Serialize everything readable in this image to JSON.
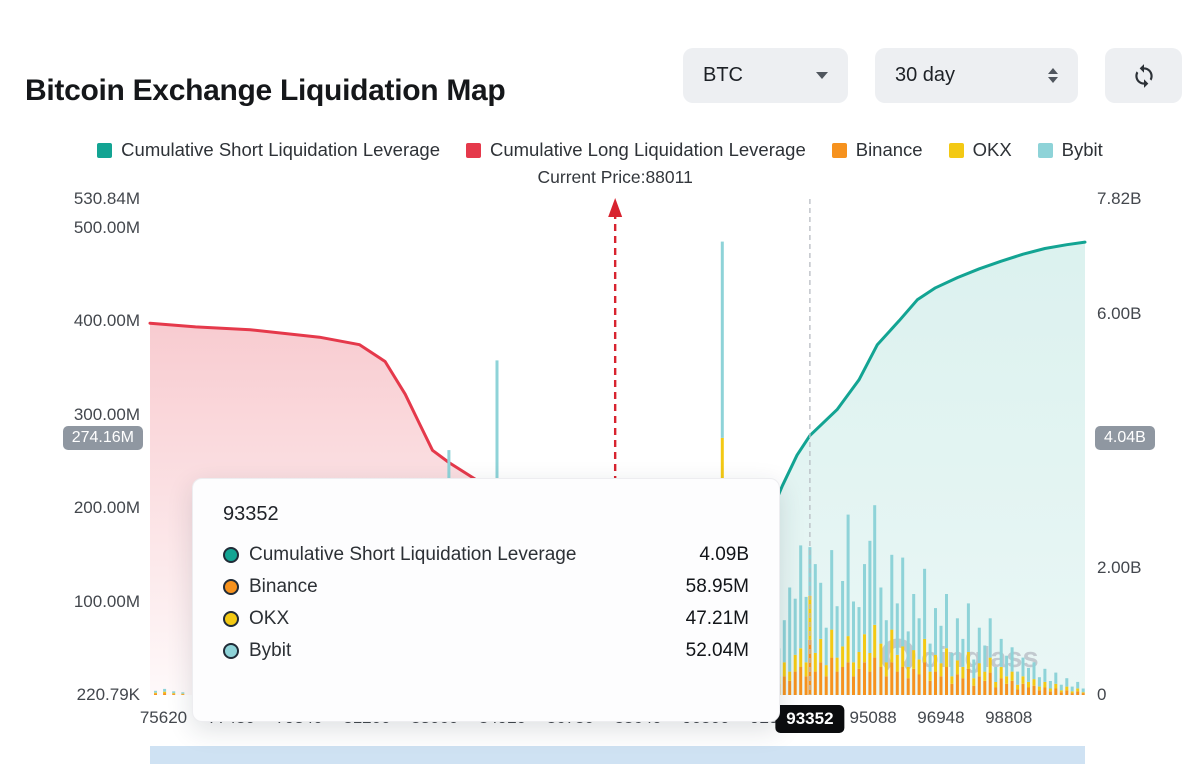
{
  "header": {
    "title": "Bitcoin Exchange Liquidation Map",
    "coin_select": "BTC",
    "range_select": "30 day"
  },
  "legend": {
    "items": [
      {
        "label": "Cumulative Short Liquidation Leverage",
        "color": "#13a493"
      },
      {
        "label": "Cumulative Long Liquidation Leverage",
        "color": "#e5394b"
      },
      {
        "label": "Binance",
        "color": "#f6921e"
      },
      {
        "label": "OKX",
        "color": "#f3c914"
      },
      {
        "label": "Bybit",
        "color": "#8ed3d8"
      }
    ]
  },
  "chart_data": {
    "type": "mixed",
    "title": "Bitcoin Exchange Liquidation Map",
    "current_price": {
      "value": 88011,
      "label": "Current Price:88011"
    },
    "x_domain": [
      75250,
      100900
    ],
    "left_axis": {
      "unit": "M",
      "min": 0.22079,
      "max": 530.84,
      "ticks": [
        {
          "v": 530.84,
          "label": "530.84M"
        },
        {
          "v": 500,
          "label": "500.00M"
        },
        {
          "v": 400,
          "label": "400.00M"
        },
        {
          "v": 300,
          "label": "300.00M"
        },
        {
          "v": 200,
          "label": "200.00M"
        },
        {
          "v": 100,
          "label": "100.00M"
        },
        {
          "v": 0.22079,
          "label": "220.79K"
        }
      ],
      "crosshair": {
        "v": 274.16,
        "label": "274.16M"
      }
    },
    "right_axis": {
      "unit": "B",
      "min": 0,
      "max": 7.82,
      "ticks": [
        {
          "v": 7.82,
          "label": "7.82B"
        },
        {
          "v": 6,
          "label": "6.00B"
        },
        {
          "v": 2,
          "label": "2.00B"
        },
        {
          "v": 0,
          "label": "0"
        }
      ],
      "crosshair": {
        "v": 4.04,
        "label": "4.04B"
      }
    },
    "x_ticks": [
      {
        "p": 75620,
        "label": "75620"
      },
      {
        "p": 77480,
        "label": "77480"
      },
      {
        "p": 79340,
        "label": "79340"
      },
      {
        "p": 81200,
        "label": "81200"
      },
      {
        "p": 83060,
        "label": "83060"
      },
      {
        "p": 84920,
        "label": "84920"
      },
      {
        "p": 86780,
        "label": "86780"
      },
      {
        "p": 88640,
        "label": "88640"
      },
      {
        "p": 90500,
        "label": "90500"
      },
      {
        "p": 92360,
        "label": "92360"
      },
      {
        "p": 95088,
        "label": "95088"
      },
      {
        "p": 96948,
        "label": "96948"
      },
      {
        "p": 98808,
        "label": "98808"
      }
    ],
    "x_active_tick": {
      "p": 93352,
      "label": "93352"
    },
    "series": {
      "long_line": {
        "name": "Cumulative Long Liquidation Leverage",
        "axis": "left",
        "unit": "M",
        "color": "#e5394b",
        "points": [
          [
            75250,
            398
          ],
          [
            76500,
            394
          ],
          [
            78000,
            391
          ],
          [
            79900,
            383
          ],
          [
            81000,
            375
          ],
          [
            81700,
            357
          ],
          [
            82250,
            322
          ],
          [
            82650,
            290
          ],
          [
            83000,
            262
          ],
          [
            83450,
            249
          ],
          [
            84300,
            228
          ],
          [
            85600,
            150
          ],
          [
            86900,
            55
          ],
          [
            87900,
            6
          ]
        ]
      },
      "short_line": {
        "name": "Cumulative Short Liquidation Leverage",
        "axis": "right",
        "unit": "B",
        "color": "#13a493",
        "points": [
          [
            88100,
            2.28
          ],
          [
            89500,
            2.4
          ],
          [
            91200,
            2.52
          ],
          [
            92100,
            2.62
          ],
          [
            92600,
            3.3
          ],
          [
            93000,
            3.78
          ],
          [
            93352,
            4.09
          ],
          [
            94100,
            4.5
          ],
          [
            94700,
            4.97
          ],
          [
            95200,
            5.52
          ],
          [
            95800,
            5.9
          ],
          [
            96300,
            6.23
          ],
          [
            96800,
            6.42
          ],
          [
            97400,
            6.58
          ],
          [
            98000,
            6.72
          ],
          [
            98600,
            6.84
          ],
          [
            99200,
            6.95
          ],
          [
            99800,
            7.04
          ],
          [
            100400,
            7.1
          ],
          [
            100900,
            7.14
          ]
        ]
      }
    },
    "bars": {
      "axis": "left",
      "unit": "M",
      "stack_order": [
        "binance",
        "okx",
        "bybit"
      ],
      "colors": {
        "binance": "#f6921e",
        "okx": "#f3c914",
        "bybit": "#8ed3d8"
      },
      "data": [
        [
          75400,
          1.5,
          1,
          2
        ],
        [
          75650,
          2,
          1.5,
          3
        ],
        [
          75900,
          1,
          1,
          2
        ],
        [
          76150,
          0.8,
          0.6,
          1.5
        ],
        [
          83450,
          0,
          10,
          252
        ],
        [
          84770,
          0,
          6,
          352
        ],
        [
          90950,
          40,
          235,
          210
        ],
        [
          92350,
          8,
          5,
          20
        ],
        [
          92500,
          12,
          8,
          30
        ],
        [
          92650,
          20,
          15,
          45
        ],
        [
          92800,
          15,
          10,
          90
        ],
        [
          92950,
          25,
          18,
          60
        ],
        [
          93100,
          30,
          20,
          110
        ],
        [
          93250,
          20,
          15,
          70
        ],
        [
          93352,
          58.95,
          47.21,
          52.04
        ],
        [
          93500,
          25,
          20,
          95
        ],
        [
          93650,
          35,
          25,
          60
        ],
        [
          93800,
          20,
          12,
          40
        ],
        [
          93950,
          40,
          30,
          85
        ],
        [
          94100,
          25,
          15,
          55
        ],
        [
          94250,
          30,
          22,
          70
        ],
        [
          94400,
          35,
          28,
          130
        ],
        [
          94550,
          20,
          15,
          65
        ],
        [
          94700,
          28,
          18,
          48
        ],
        [
          94850,
          35,
          30,
          75
        ],
        [
          95000,
          25,
          20,
          120
        ],
        [
          95130,
          40,
          35,
          128
        ],
        [
          95300,
          30,
          25,
          60
        ],
        [
          95450,
          20,
          15,
          45
        ],
        [
          95600,
          35,
          35,
          80
        ],
        [
          95750,
          25,
          18,
          55
        ],
        [
          95900,
          30,
          22,
          95
        ],
        [
          96050,
          18,
          12,
          38
        ],
        [
          96200,
          28,
          20,
          60
        ],
        [
          96350,
          22,
          16,
          44
        ],
        [
          96500,
          35,
          25,
          75
        ],
        [
          96650,
          15,
          10,
          30
        ],
        [
          96800,
          25,
          18,
          50
        ],
        [
          96950,
          20,
          14,
          40
        ],
        [
          97100,
          30,
          20,
          58
        ],
        [
          97250,
          12,
          8,
          25
        ],
        [
          97400,
          22,
          15,
          45
        ],
        [
          97550,
          18,
          12,
          30
        ],
        [
          97700,
          28,
          18,
          52
        ],
        [
          97850,
          10,
          8,
          20
        ],
        [
          98000,
          20,
          14,
          38
        ],
        [
          98150,
          15,
          10,
          28
        ],
        [
          98300,
          24,
          16,
          42
        ],
        [
          98450,
          8,
          6,
          16
        ],
        [
          98600,
          18,
          12,
          30
        ],
        [
          98750,
          12,
          8,
          22
        ],
        [
          98900,
          15,
          10,
          26
        ],
        [
          99050,
          6,
          5,
          14
        ],
        [
          99200,
          12,
          8,
          20
        ],
        [
          99350,
          8,
          6,
          15
        ],
        [
          99500,
          10,
          7,
          18
        ],
        [
          99650,
          5,
          4,
          10
        ],
        [
          99800,
          8,
          6,
          14
        ],
        [
          99950,
          4,
          3,
          8
        ],
        [
          100100,
          7,
          5,
          12
        ],
        [
          100250,
          3,
          2,
          6
        ],
        [
          100400,
          5,
          4,
          9
        ],
        [
          100550,
          2,
          2,
          5
        ],
        [
          100700,
          4,
          3,
          7
        ],
        [
          100850,
          2,
          1,
          4
        ]
      ]
    }
  },
  "tooltip": {
    "x_value": "93352",
    "rows": [
      {
        "label": "Cumulative Short Liquidation Leverage",
        "value": "4.09B",
        "color": "#13a493"
      },
      {
        "label": "Binance",
        "value": "58.95M",
        "color": "#f6921e"
      },
      {
        "label": "OKX",
        "value": "47.21M",
        "color": "#f3c914"
      },
      {
        "label": "Bybit",
        "value": "52.04M",
        "color": "#8ed3d8"
      }
    ]
  },
  "watermark": {
    "text": "oinglass"
  }
}
